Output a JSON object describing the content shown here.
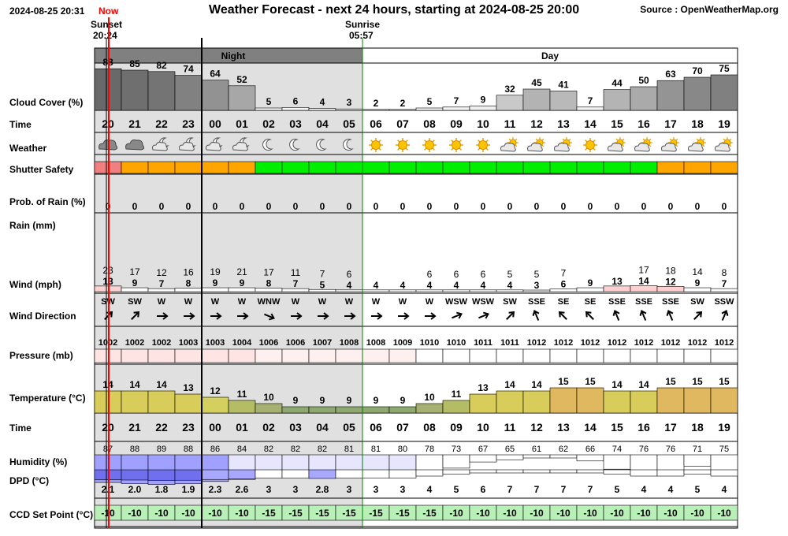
{
  "header": {
    "timestamp": "2024-08-25 20:31",
    "now_label": "Now",
    "title": "Weather Forecast - next 24 hours, starting at 2024-08-25 20:00",
    "source": "Source : OpenWeatherMap.org",
    "sunset_label": "Sunset",
    "sunset_time": "20:24",
    "sunrise_label": "Sunrise",
    "sunrise_time": "05:57"
  },
  "periods": {
    "night": "Night",
    "day": "Day"
  },
  "row_labels": {
    "cloud": "Cloud Cover (%)",
    "time": "Time",
    "weather": "Weather",
    "shutter": "Shutter Safety",
    "prob_rain": "Prob. of Rain (%)",
    "rain": "Rain (mm)",
    "wind": "Wind (mph)",
    "wind_dir": "Wind Direction",
    "pressure": "Pressure (mb)",
    "temperature": "Temperature (°C)",
    "time2": "Time",
    "humidity": "Humidity (%)",
    "dpd": "DPD (°C)",
    "ccd": "CCD Set Point (°C)"
  },
  "colors": {
    "night_bg": "#e0e0e0",
    "period_night": "#808080",
    "period_day": "#ffffff",
    "shutter_red": "#f08080",
    "shutter_orange": "#ffa500",
    "shutter_green": "#00ee00",
    "ccd_green": "#b8f0b8",
    "now_line": "#ff0000"
  },
  "hours": [
    "20",
    "21",
    "22",
    "23",
    "00",
    "01",
    "02",
    "03",
    "04",
    "05",
    "06",
    "07",
    "08",
    "09",
    "10",
    "11",
    "12",
    "13",
    "14",
    "15",
    "16",
    "17",
    "18",
    "19"
  ],
  "cloud_cover": [
    88,
    85,
    82,
    74,
    64,
    52,
    5,
    6,
    4,
    3,
    2,
    2,
    5,
    7,
    9,
    32,
    45,
    41,
    7,
    44,
    50,
    63,
    70,
    75
  ],
  "weather_icons": [
    "cloud-icon",
    "cloud-icon",
    "partly-cloudy-night-icon",
    "partly-cloudy-night-icon",
    "partly-cloudy-night-icon",
    "partly-cloudy-night-icon",
    "moon-icon",
    "moon-icon",
    "moon-icon",
    "moon-icon",
    "sun-icon",
    "sun-icon",
    "sun-icon",
    "sun-icon",
    "sun-icon",
    "partly-cloudy-day-icon",
    "partly-cloudy-day-icon",
    "partly-cloudy-day-icon",
    "sun-icon",
    "partly-cloudy-day-icon",
    "partly-cloudy-day-icon",
    "partly-cloudy-day-icon",
    "partly-cloudy-day-icon",
    "partly-cloudy-day-icon"
  ],
  "shutter": [
    "red",
    "orange",
    "orange",
    "orange",
    "orange",
    "orange",
    "green",
    "green",
    "green",
    "green",
    "green",
    "green",
    "green",
    "green",
    "green",
    "green",
    "green",
    "green",
    "green",
    "green",
    "green",
    "orange",
    "orange",
    "orange"
  ],
  "prob_rain": [
    "0",
    "0",
    "0",
    "0",
    "0",
    "0",
    "0",
    "0",
    "0",
    "0",
    "0",
    "0",
    "0",
    "0",
    "0",
    "0",
    "0",
    "0",
    "0",
    "0",
    "0",
    "0",
    "0",
    "0"
  ],
  "wind_gust": [
    "23",
    "17",
    "12",
    "16",
    "19",
    "21",
    "17",
    "11",
    "7",
    "6",
    "",
    "",
    "6",
    "6",
    "6",
    "5",
    "5",
    "7",
    "",
    "",
    "17",
    "18",
    "14",
    "8"
  ],
  "wind_speed": [
    "13",
    "9",
    "7",
    "8",
    "9",
    "9",
    "8",
    "7",
    "5",
    "4",
    "4",
    "4",
    "4",
    "4",
    "4",
    "4",
    "3",
    "6",
    "9",
    "13",
    "14",
    "12",
    "9",
    "7"
  ],
  "wind_dir": [
    "SW",
    "SW",
    "W",
    "W",
    "W",
    "W",
    "WNW",
    "W",
    "W",
    "W",
    "W",
    "W",
    "W",
    "WSW",
    "WSW",
    "SW",
    "SSE",
    "SE",
    "SE",
    "SSE",
    "SSE",
    "SSE",
    "SW",
    "SSW"
  ],
  "pressure": [
    "1002",
    "1002",
    "1002",
    "1003",
    "1003",
    "1004",
    "1006",
    "1006",
    "1007",
    "1008",
    "1008",
    "1009",
    "1010",
    "1010",
    "1011",
    "1011",
    "1012",
    "1012",
    "1012",
    "1012",
    "1012",
    "1012",
    "1012",
    "1012"
  ],
  "temperature": [
    "14",
    "14",
    "14",
    "13",
    "12",
    "11",
    "10",
    "9",
    "9",
    "9",
    "9",
    "9",
    "10",
    "11",
    "13",
    "14",
    "14",
    "15",
    "15",
    "14",
    "14",
    "15",
    "15",
    "15"
  ],
  "humidity": [
    "87",
    "88",
    "89",
    "88",
    "86",
    "84",
    "82",
    "82",
    "82",
    "81",
    "81",
    "80",
    "78",
    "73",
    "67",
    "65",
    "61",
    "62",
    "66",
    "74",
    "76",
    "76",
    "71",
    "75"
  ],
  "dpd": [
    "2.1",
    "2.0",
    "1.8",
    "1.9",
    "2.3",
    "2.6",
    "3",
    "3",
    "2.8",
    "3",
    "3",
    "3",
    "4",
    "5",
    "6",
    "7",
    "7",
    "7",
    "7",
    "5",
    "4",
    "4",
    "5",
    "4"
  ],
  "ccd": [
    "-10",
    "-10",
    "-10",
    "-10",
    "-10",
    "-10",
    "-15",
    "-15",
    "-15",
    "-15",
    "-15",
    "-15",
    "-15",
    "-10",
    "-10",
    "-10",
    "-10",
    "-10",
    "-10",
    "-10",
    "-10",
    "-10",
    "-10",
    "-10"
  ]
}
